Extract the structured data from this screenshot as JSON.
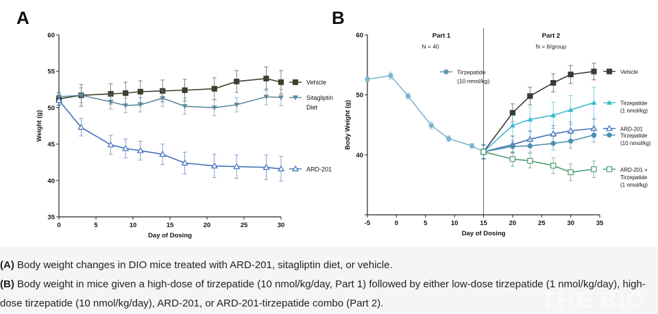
{
  "panels": {
    "A": {
      "letter": "A"
    },
    "B": {
      "letter": "B",
      "part1_title": "Part 1",
      "part1_n": "N = 40",
      "part2_title": "Part 2",
      "part2_n": "N = 8/group"
    }
  },
  "caption": {
    "a_prefix": "(A)",
    "a_text": " Body weight changes in DIO mice treated with ARD-201, sitagliptin diet, or vehicle.",
    "b_prefix": "(B)",
    "b_text_line1": " Body weight in mice given a high-dose of tirzepatide (10 nmol/kg/day, Part 1) followed by either low-dose tirzepatide (1 nmol/kg/day), high-",
    "b_text_line2": "dose tirzepatide (10 nmol/kg/day), ARD-201, or ARD-201-tirzepatide combo (Part 2)."
  },
  "watermark": "THE BIO",
  "chart_data": [
    {
      "id": "A",
      "type": "line",
      "title": "",
      "xlabel": "Day of Dosing",
      "ylabel": "Weight (g)",
      "xlim": [
        0,
        30
      ],
      "ylim": [
        35,
        60
      ],
      "xticks": [
        0,
        5,
        10,
        15,
        20,
        25,
        30
      ],
      "yticks": [
        35,
        40,
        45,
        50,
        55,
        60
      ],
      "ytick_labels": [
        "35",
        "40",
        "45",
        "50",
        "55",
        "60"
      ],
      "grid": false,
      "series": [
        {
          "name": "Vehicle",
          "label_lines": [
            "Vehicle"
          ],
          "color": "#3f3f2f",
          "marker": "square",
          "x": [
            0,
            3,
            7,
            9,
            11,
            14,
            17,
            21,
            24,
            28,
            30
          ],
          "y": [
            51.2,
            51.7,
            51.9,
            52.0,
            52.2,
            52.3,
            52.4,
            52.6,
            53.6,
            54.0,
            53.5
          ],
          "err": [
            0.8,
            1.5,
            1.4,
            1.5,
            1.5,
            1.5,
            1.5,
            1.5,
            1.5,
            1.6,
            1.6
          ],
          "legend_y": 53.5
        },
        {
          "name": "Sitagliptin Diet",
          "label_lines": [
            "Sitagliptin",
            "Diet"
          ],
          "color": "#5e8a9e",
          "marker": "triangle-down",
          "x": [
            0,
            3,
            7,
            9,
            11,
            14,
            17,
            21,
            24,
            28,
            30
          ],
          "y": [
            51.5,
            51.7,
            50.8,
            50.3,
            50.4,
            51.3,
            50.2,
            50.0,
            50.4,
            51.5,
            51.4
          ],
          "err": [
            0.6,
            1.0,
            1.0,
            1.0,
            1.0,
            1.1,
            1.1,
            1.1,
            1.0,
            1.1,
            1.1
          ],
          "legend_y": 51.4
        },
        {
          "name": "ARD-201",
          "label_lines": [
            "ARD-201"
          ],
          "color": "#3f6fb6",
          "marker": "triangle-up-open",
          "x": [
            0,
            3,
            7,
            9,
            11,
            14,
            17,
            21,
            24,
            28,
            30
          ],
          "y": [
            51.0,
            47.3,
            44.9,
            44.4,
            44.1,
            43.6,
            42.4,
            42.0,
            41.9,
            41.8,
            41.6
          ],
          "err": [
            0.7,
            1.2,
            1.3,
            1.3,
            1.3,
            1.4,
            1.5,
            1.6,
            1.6,
            1.7,
            1.7
          ],
          "legend_y": 41.6
        }
      ]
    },
    {
      "id": "B",
      "type": "line",
      "title": "",
      "xlabel": "Day of Dosing",
      "ylabel": "Body Weight (g)",
      "xlim": [
        -5,
        35
      ],
      "ylim": [
        30,
        60
      ],
      "xticks": [
        -5,
        0,
        5,
        10,
        15,
        20,
        25,
        30,
        35
      ],
      "yticks": [
        30,
        40,
        50,
        60
      ],
      "ytick_labels": [
        "",
        "40",
        "50",
        "60"
      ],
      "grid": false,
      "divider_x": 15,
      "part1_legend": {
        "lines": [
          "Tirzepatide",
          "(10 nmol/kg)"
        ],
        "color": "#5b9bb4"
      },
      "series": [
        {
          "name": "Tirzepatide (10 nmol/kg) Part 1",
          "label_lines": [],
          "color": "#7fb4cc",
          "marker": "circle",
          "x": [
            -5,
            -1,
            2,
            6,
            9,
            13,
            15
          ],
          "y": [
            52.6,
            53.2,
            49.8,
            44.9,
            42.7,
            41.5,
            40.5
          ],
          "err": [
            0.5,
            0.6,
            0.5,
            0.6,
            0.5,
            0.4,
            0.5
          ],
          "legend_y": null
        },
        {
          "name": "Vehicle",
          "label_lines": [
            "Vehicle"
          ],
          "color": "#3a3a3a",
          "marker": "square",
          "x": [
            15,
            20,
            23,
            27,
            30,
            34
          ],
          "y": [
            40.5,
            47.0,
            49.8,
            52.0,
            53.4,
            53.9
          ],
          "err": [
            1.2,
            1.5,
            1.5,
            1.5,
            1.5,
            1.4
          ],
          "legend_y": 53.9
        },
        {
          "name": "Tirzepatide (1 nmol/kg)",
          "label_lines": [
            "Tirzepatide",
            "(1 nmol/kg)"
          ],
          "color": "#3fb9d0",
          "marker": "triangle-up",
          "x": [
            15,
            20,
            23,
            27,
            30,
            34
          ],
          "y": [
            40.5,
            44.9,
            45.9,
            46.6,
            47.5,
            48.7
          ],
          "err": [
            1.2,
            1.7,
            2.0,
            2.2,
            2.4,
            2.6
          ],
          "legend_y": 48.7
        },
        {
          "name": "ARD-201",
          "label_lines": [
            "ARD-201"
          ],
          "color": "#3f6fb6",
          "marker": "triangle-up-open",
          "x": [
            15,
            20,
            23,
            27,
            30,
            34
          ],
          "y": [
            40.5,
            41.7,
            42.6,
            43.5,
            44.0,
            44.4
          ],
          "err": [
            1.2,
            1.4,
            1.4,
            1.4,
            1.5,
            1.5
          ],
          "legend_y": 44.4
        },
        {
          "name": "Tirzepatide (10 nmol/kg)",
          "label_lines": [
            "Tirzepatide",
            "(10 nmol/kg)"
          ],
          "color": "#4f8fae",
          "marker": "circle",
          "x": [
            15,
            20,
            23,
            27,
            30,
            34
          ],
          "y": [
            40.5,
            41.4,
            41.5,
            41.9,
            42.3,
            43.3
          ],
          "err": [
            1.1,
            1.0,
            1.1,
            1.1,
            1.2,
            1.2
          ],
          "legend_y": 43.3
        },
        {
          "name": "ARD-201 + Tirzepatide (1 nmol/kg)",
          "label_lines": [
            "ARD-201 +",
            "Tirzepatide",
            "(1 nmol/kg)"
          ],
          "color": "#4a9a70",
          "marker": "square-open",
          "x": [
            15,
            20,
            23,
            27,
            30,
            34
          ],
          "y": [
            40.5,
            39.3,
            39.0,
            38.2,
            37.1,
            37.6
          ],
          "err": [
            1.1,
            1.2,
            1.2,
            1.3,
            1.4,
            1.4
          ],
          "legend_y": 37.6
        }
      ]
    }
  ]
}
